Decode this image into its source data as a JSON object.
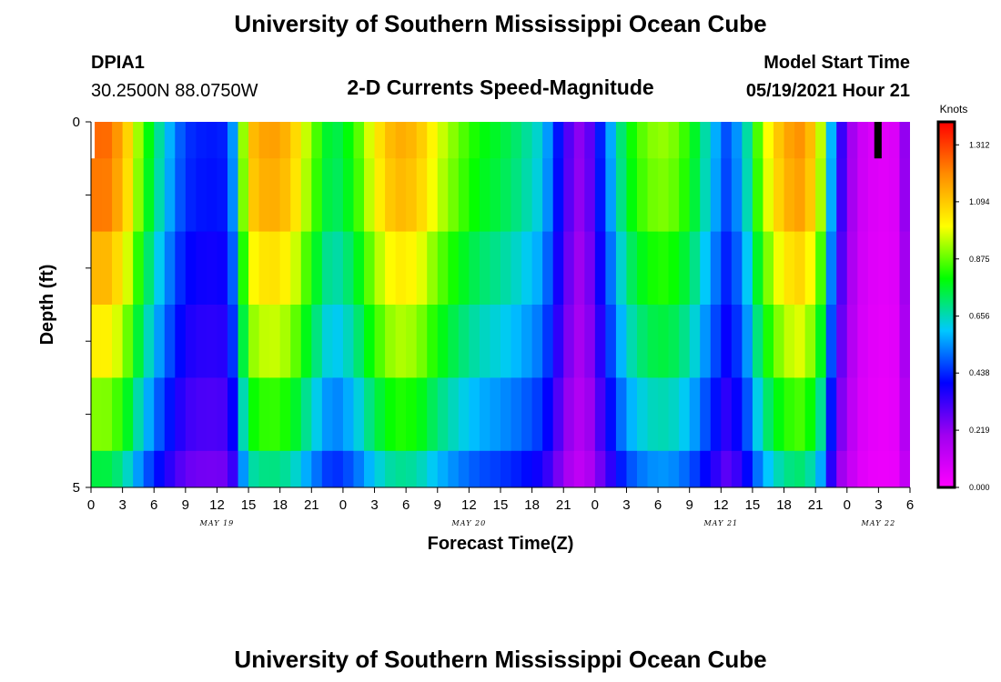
{
  "header": {
    "title": "University of Southern Mississippi Ocean Cube",
    "footer_title": "University of Southern Mississippi Ocean Cube",
    "station": "DPIA1",
    "location": "30.2500N  88.0750W",
    "model_start_label": "Model Start Time",
    "model_start_value": "05/19/2021 Hour 21"
  },
  "chart_data": {
    "type": "heatmap",
    "title": "2-D Currents Speed-Magnitude",
    "xlabel": "Forecast Time(Z)",
    "ylabel": "Depth (ft)",
    "ylim": [
      0,
      5
    ],
    "y_tick_labels": [
      "0",
      "5"
    ],
    "y_tick_values": [
      0,
      5
    ],
    "x_hours_start": 0,
    "x_hours_end": 78,
    "x_tick_labels": [
      "0",
      "3",
      "6",
      "9",
      "12",
      "15",
      "18",
      "21",
      "0",
      "3",
      "6",
      "9",
      "12",
      "15",
      "18",
      "21",
      "0",
      "3",
      "6",
      "9",
      "12",
      "15",
      "18",
      "21",
      "0",
      "3",
      "6"
    ],
    "day_labels": [
      {
        "label": "MAY 19",
        "center_hour": 12
      },
      {
        "label": "MAY 20",
        "center_hour": 36
      },
      {
        "label": "MAY 21",
        "center_hour": 60
      },
      {
        "label": "MAY 22",
        "center_hour": 75
      }
    ],
    "colorbar": {
      "title": "Knots",
      "min": 0.0,
      "max": 1.4,
      "tick_labels": [
        "1.312",
        "1.094",
        "0.875",
        "0.656",
        "0.438",
        "0.219",
        "0.000"
      ],
      "tick_values": [
        1.312,
        1.094,
        0.875,
        0.656,
        0.438,
        0.219,
        0.0
      ],
      "colors": [
        "#ff00ff",
        "#a000f0",
        "#0000ff",
        "#00c8ff",
        "#00ff00",
        "#ffff00",
        "#ff8c00",
        "#ff0000"
      ]
    },
    "depth_bins": [
      [
        0,
        0.5
      ],
      [
        0.5,
        1.5
      ],
      [
        1.5,
        2.5
      ],
      [
        2.5,
        3.5
      ],
      [
        3.5,
        4.5
      ],
      [
        4.5,
        5
      ]
    ],
    "speed_profile_hours": [
      0,
      1,
      3,
      5,
      7,
      9,
      11,
      12.5,
      13.5,
      15,
      17,
      19,
      21,
      23,
      25,
      27,
      29,
      31,
      33,
      35,
      37,
      39,
      41,
      43,
      45,
      46,
      47,
      49,
      51,
      53,
      55,
      57,
      59,
      60.5,
      62,
      64,
      66,
      68,
      69.5,
      71,
      73,
      75,
      77,
      78
    ],
    "speed_profile_knots": [
      1.22,
      1.28,
      1.15,
      0.85,
      0.62,
      0.45,
      0.42,
      0.43,
      0.55,
      1.1,
      1.18,
      1.12,
      0.9,
      0.72,
      0.82,
      1.02,
      1.15,
      1.12,
      0.98,
      0.88,
      0.8,
      0.76,
      0.7,
      0.62,
      0.35,
      0.24,
      0.21,
      0.5,
      0.78,
      0.9,
      0.92,
      0.82,
      0.62,
      0.48,
      0.58,
      0.95,
      1.15,
      1.2,
      0.95,
      0.4,
      0.12,
      0.06,
      0.08,
      0.35
    ],
    "depth_factors": [
      1.0,
      0.98,
      0.9,
      0.82,
      0.72,
      0.6
    ],
    "missing_cells": [
      {
        "hour_start": 0,
        "hour_end": 0.35,
        "depth_start": 0,
        "depth_end": 0.5,
        "fill": "#ffffff"
      },
      {
        "hour_start": 74.6,
        "hour_end": 75.3,
        "depth_start": 0,
        "depth_end": 0.5,
        "fill": "#000000"
      }
    ]
  }
}
